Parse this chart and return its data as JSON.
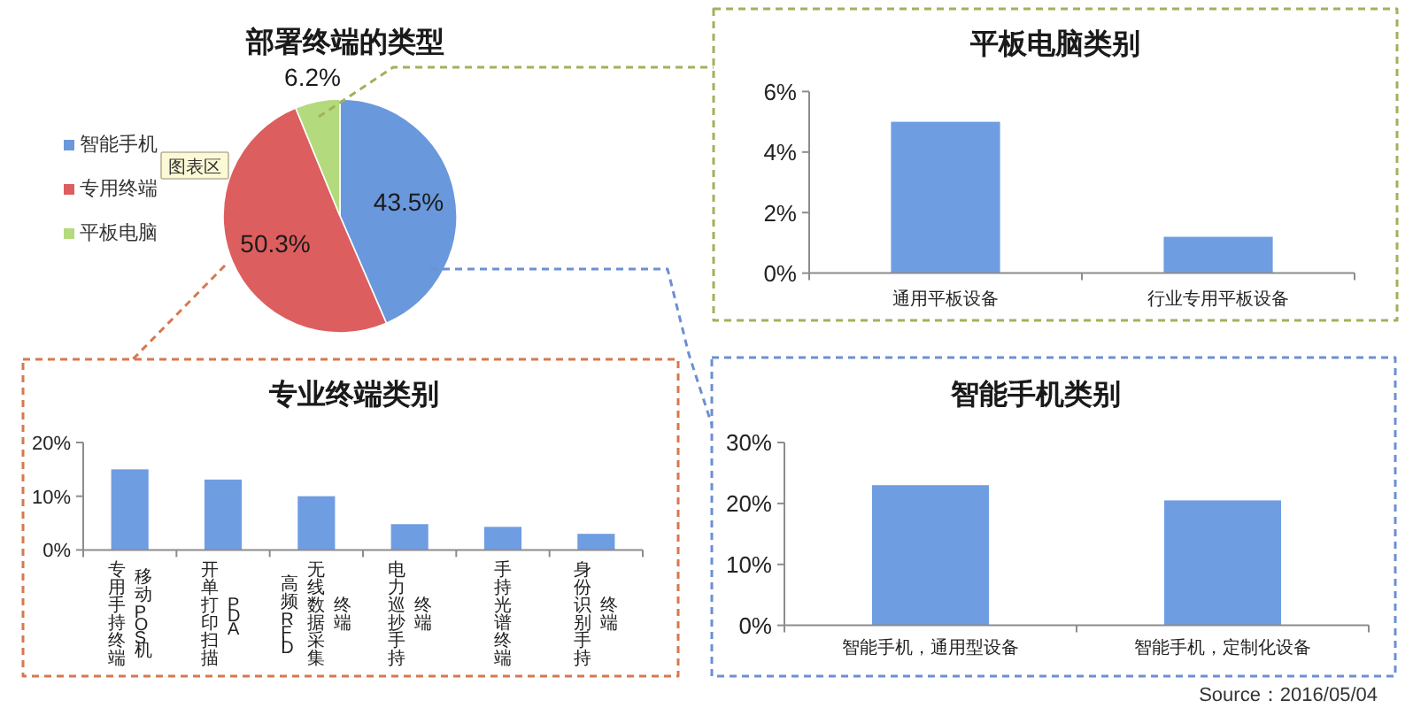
{
  "chart_data": [
    {
      "type": "pie",
      "title": "部署终端的类型",
      "categories": [
        "智能手机",
        "专用终端",
        "平板电脑"
      ],
      "values": [
        43.5,
        50.3,
        6.2
      ],
      "colors": [
        "#6a98dc",
        "#dd5e5e",
        "#b3da7c"
      ],
      "value_labels": [
        "43.5%",
        "50.3%",
        "6.2%"
      ],
      "legend": "left",
      "annotations": [
        "图表区"
      ]
    },
    {
      "type": "bar",
      "title": "平板电脑类别",
      "categories": [
        "通用平板设备",
        "行业专用平板设备"
      ],
      "values": [
        5.0,
        1.2
      ],
      "color": "#6f9de2",
      "ylim": [
        0,
        6
      ],
      "yticks": [
        {
          "value": 0,
          "label": "0%"
        },
        {
          "value": 2,
          "label": "2%"
        },
        {
          "value": 4,
          "label": "4%"
        },
        {
          "value": 6,
          "label": "6%"
        }
      ]
    },
    {
      "type": "bar",
      "title": "专业终端类别",
      "categories": [
        "专用手持终端移动POS机",
        "开单打印扫描PDA",
        "高频RFID无线数据采集终端",
        "电力巡抄手持终端",
        "手持光谱终端",
        "身份识别手持终端"
      ],
      "values": [
        15.0,
        13.1,
        10.0,
        4.8,
        4.3,
        3.0
      ],
      "color": "#6f9de2",
      "ylim": [
        0,
        20
      ],
      "yticks": [
        {
          "value": 0,
          "label": "0%"
        },
        {
          "value": 10,
          "label": "10%"
        },
        {
          "value": 20,
          "label": "20%"
        }
      ]
    },
    {
      "type": "bar",
      "title": "智能手机类别",
      "categories": [
        "智能手机，通用型设备",
        "智能手机，定制化设备"
      ],
      "values": [
        23.0,
        20.5
      ],
      "color": "#6f9de2",
      "ylim": [
        0,
        30
      ],
      "yticks": [
        {
          "value": 0,
          "label": "0%"
        },
        {
          "value": 10,
          "label": "10%"
        },
        {
          "value": 20,
          "label": "20%"
        },
        {
          "value": 30,
          "label": "30%"
        }
      ],
      "annotations": [
        "Source：2016/05/04"
      ]
    }
  ]
}
